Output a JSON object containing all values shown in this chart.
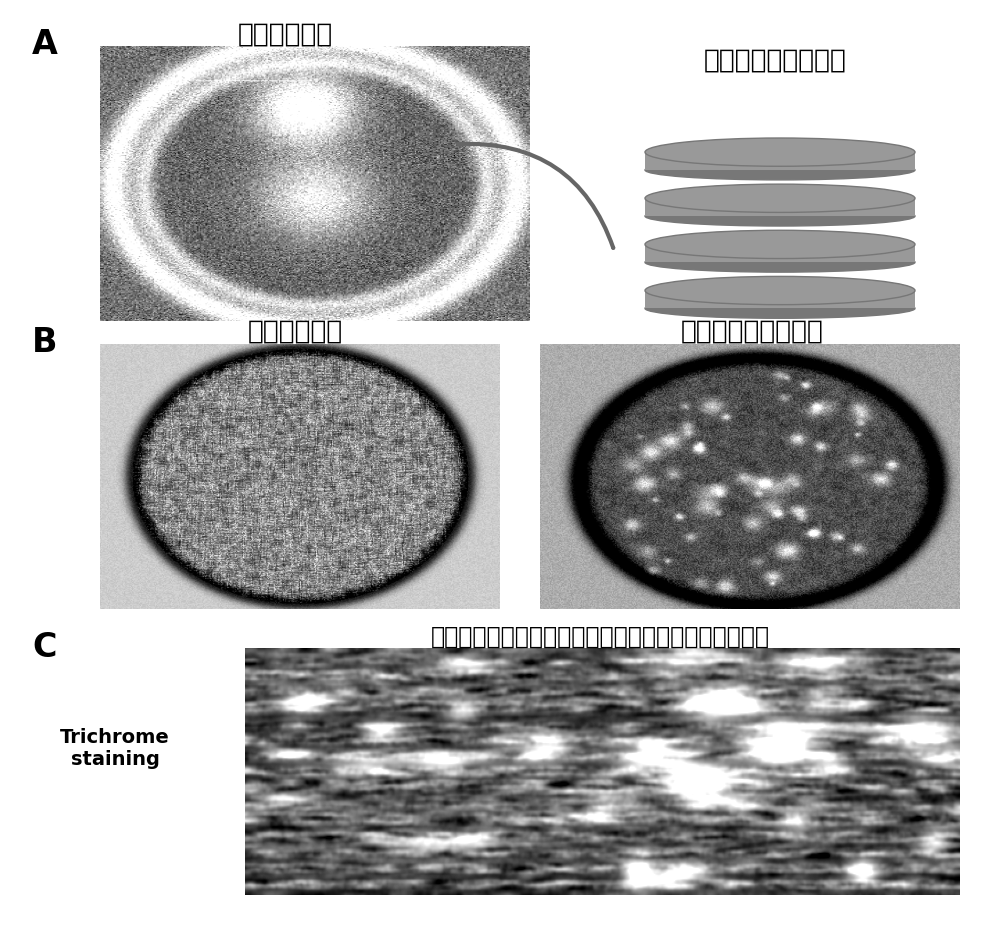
{
  "panel_A_label": "A",
  "panel_B_label": "B",
  "panel_C_label": "C",
  "panel_A_title_left": "肌肉细胞薄层",
  "panel_A_title_right": "肌肉细胞薄层的叠加",
  "panel_B_title_left": "肌肉细胞薄层",
  "panel_B_title_right": "肌肉细胞薄层的叠加",
  "panel_C_title": "肌肉细胞立体多层挤结构在成肌纤维分化后的组织形态",
  "panel_C_label_text": "Trichrome\nstaining",
  "background_color": "#ffffff",
  "panel_label_fontsize": 24,
  "title_fontsize": 19,
  "c_title_fontsize": 17,
  "label_fontsize": 15,
  "arrow_color": "#666666",
  "disk_color": "#999999",
  "disk_edge_color": "#777777",
  "disk_bottom_color": "#777777"
}
